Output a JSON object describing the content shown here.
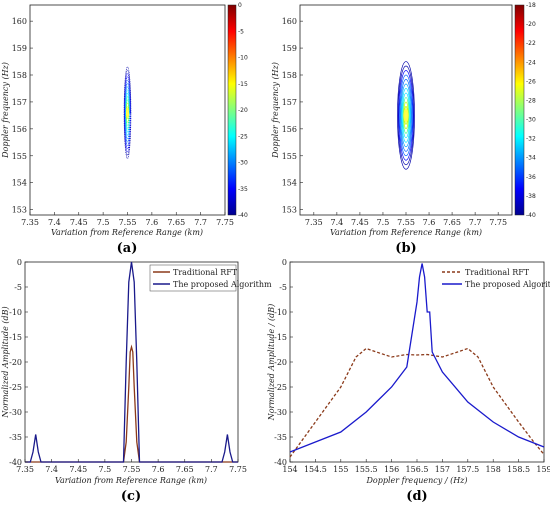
{
  "chart_data": [
    {
      "panel": "(a)",
      "type": "heatmap",
      "xlabel": "Variation from Reference Range (km)",
      "ylabel": "Doppler frequency (Hz)",
      "xlim": [
        7.35,
        7.75
      ],
      "ylim": [
        152.8,
        160.6
      ],
      "xticks": [
        "7.35",
        "7.4",
        "7.45",
        "7.5",
        "7.55",
        "7.6",
        "7.65",
        "7.7",
        "7.75"
      ],
      "yticks": [
        "153",
        "154",
        "155",
        "156",
        "157",
        "158",
        "159",
        "160"
      ],
      "colorbar": {
        "min": -40,
        "max": 0,
        "ticks": [
          "0",
          "-5",
          "-10",
          "-15",
          "-20",
          "-25",
          "-30",
          "-35",
          "-40"
        ]
      },
      "peak": {
        "x": 7.55,
        "y": 156.6,
        "x_halfwidth": 0.004,
        "y_halfwidth": 1.7
      },
      "grid": false
    },
    {
      "panel": "(b)",
      "type": "heatmap",
      "xlabel": "Variation from Reference Range (km)",
      "ylabel": "Doppler frequency (Hz)",
      "xlim": [
        7.32,
        7.78
      ],
      "ylim": [
        152.8,
        160.6
      ],
      "xticks": [
        "7.35",
        "7.4",
        "7.45",
        "7.5",
        "7.55",
        "7.6",
        "7.65",
        "7.7",
        "7.75"
      ],
      "yticks": [
        "153",
        "154",
        "155",
        "156",
        "157",
        "158",
        "159",
        "160"
      ],
      "colorbar": {
        "min": -40,
        "max": -18,
        "ticks": [
          "-18",
          "-20",
          "-22",
          "-24",
          "-26",
          "-28",
          "-30",
          "-32",
          "-34",
          "-36",
          "-38",
          "-40"
        ]
      },
      "peak": {
        "x": 7.55,
        "y": 156.5,
        "x_halfwidth": 0.012,
        "y_halfwidth": 2.0
      },
      "grid": false
    },
    {
      "panel": "(c)",
      "type": "line",
      "xlabel": "Variation from Reference Range (km)",
      "ylabel": "Normalized Amplitude (dB)",
      "xlim": [
        7.35,
        7.75
      ],
      "ylim": [
        -40,
        0
      ],
      "xticks": [
        "7.35",
        "7.4",
        "7.45",
        "7.5",
        "7.55",
        "7.6",
        "7.65",
        "7.7",
        "7.75"
      ],
      "yticks": [
        "0",
        "-5",
        "-10",
        "-15",
        "-20",
        "-25",
        "-30",
        "-35",
        "-40"
      ],
      "legend": "top-right",
      "series": [
        {
          "name": "Traditional RFT",
          "color": "#8b3a1a",
          "x": [
            7.35,
            7.535,
            7.54,
            7.545,
            7.5475,
            7.55,
            7.5525,
            7.555,
            7.56,
            7.565,
            7.75
          ],
          "y": [
            -40,
            -40,
            -36,
            -25,
            -18,
            -17,
            -18,
            -25,
            -36,
            -40,
            -40
          ]
        },
        {
          "name": "The proposed Algorithm",
          "color": "#1a1a8b",
          "x": [
            7.35,
            7.36,
            7.365,
            7.37,
            7.375,
            7.38,
            7.535,
            7.54,
            7.545,
            7.55,
            7.555,
            7.56,
            7.565,
            7.72,
            7.725,
            7.73,
            7.735,
            7.74,
            7.75
          ],
          "y": [
            -40,
            -40,
            -38,
            -34.5,
            -38,
            -40,
            -40,
            -20,
            -4,
            0,
            -4,
            -20,
            -40,
            -40,
            -38,
            -34.5,
            -38,
            -40,
            -40
          ]
        }
      ]
    },
    {
      "panel": "(d)",
      "type": "line",
      "xlabel": "Doppler frequency / (Hz)",
      "ylabel": "Normalized Amplitude / (dB)",
      "xlim": [
        154,
        159
      ],
      "ylim": [
        -40,
        0
      ],
      "xticks": [
        "154",
        "154.5",
        "155",
        "155.5",
        "156",
        "156.5",
        "157",
        "157.5",
        "158",
        "158.5",
        "159"
      ],
      "yticks": [
        "0",
        "-5",
        "-10",
        "-15",
        "-20",
        "-25",
        "-30",
        "-35",
        "-40"
      ],
      "legend": "top-right",
      "series": [
        {
          "name": "Traditional RFT",
          "color": "#8b3a1a",
          "x": [
            154,
            154.5,
            155,
            155.3,
            155.5,
            155.7,
            156,
            156.3,
            156.5,
            156.7,
            157,
            157.3,
            157.5,
            157.7,
            158,
            158.5,
            158.8,
            159
          ],
          "y": [
            -39,
            -32,
            -25,
            -19,
            -17.3,
            -18,
            -19,
            -18.5,
            -18.6,
            -18.5,
            -19,
            -18,
            -17.3,
            -19,
            -25,
            -32,
            -36,
            -38.5
          ]
        },
        {
          "name": "The proposed Algorithm",
          "color": "#1a1acc",
          "x": [
            154,
            154.5,
            155,
            155.5,
            156,
            156.3,
            156.5,
            156.55,
            156.6,
            156.65,
            156.7,
            156.75,
            156.8,
            157,
            157.5,
            158,
            158.5,
            159
          ],
          "y": [
            -38,
            -36,
            -34,
            -30,
            -25,
            -21,
            -8,
            -3,
            -0.3,
            -3,
            -10,
            -10,
            -18,
            -22,
            -28,
            -32,
            -35,
            -37
          ]
        }
      ]
    }
  ],
  "labels": {
    "a": "(a)",
    "b": "(b)",
    "c": "(c)",
    "d": "(d)"
  },
  "colors": {
    "axis": "#222222",
    "rft": "#8b3a1a",
    "proposed": "#1a1acc"
  }
}
